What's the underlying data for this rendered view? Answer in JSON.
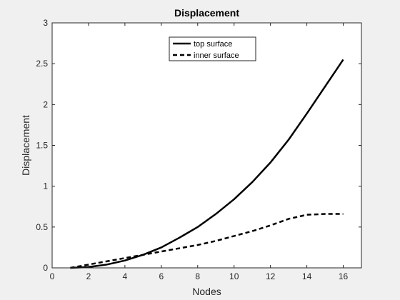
{
  "chart_data": {
    "type": "line",
    "title": "Displacement",
    "xlabel": "Nodes",
    "ylabel": "Displacement",
    "xlim": [
      0,
      17
    ],
    "ylim": [
      0,
      3
    ],
    "xticks": [
      0,
      2,
      4,
      6,
      8,
      10,
      12,
      14,
      16
    ],
    "yticks": [
      0,
      0.5,
      1,
      1.5,
      2,
      2.5,
      3
    ],
    "xtick_labels": [
      "0",
      "2",
      "4",
      "6",
      "8",
      "10",
      "12",
      "14",
      "16"
    ],
    "ytick_labels": [
      "0",
      "0.5",
      "1",
      "1.5",
      "2",
      "2.5",
      "3"
    ],
    "grid": false,
    "legend_position": "top-center",
    "series": [
      {
        "name": "top surface",
        "style": "solid",
        "color": "#000000",
        "x": [
          1,
          2,
          3,
          4,
          5,
          6,
          7,
          8,
          9,
          10,
          11,
          12,
          13,
          14,
          15,
          16
        ],
        "y": [
          0,
          0.01,
          0.04,
          0.09,
          0.16,
          0.25,
          0.37,
          0.5,
          0.66,
          0.84,
          1.05,
          1.29,
          1.57,
          1.89,
          2.22,
          2.55
        ]
      },
      {
        "name": "inner surface",
        "style": "dashed",
        "color": "#000000",
        "x": [
          1,
          2,
          3,
          4,
          5,
          6,
          7,
          8,
          9,
          10,
          11,
          12,
          13,
          14,
          15,
          16
        ],
        "y": [
          0,
          0.04,
          0.08,
          0.12,
          0.16,
          0.2,
          0.24,
          0.28,
          0.33,
          0.39,
          0.45,
          0.52,
          0.6,
          0.65,
          0.66,
          0.66
        ]
      }
    ]
  }
}
